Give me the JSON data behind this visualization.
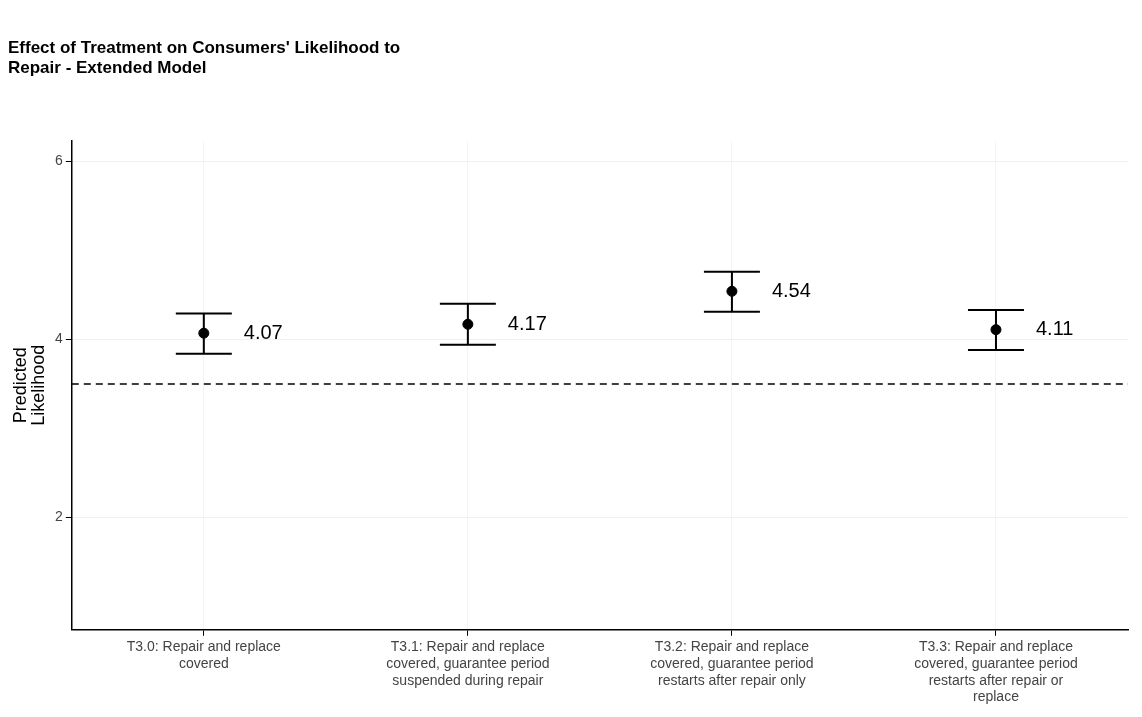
{
  "chart_data": {
    "type": "scatter",
    "title": "Effect of Treatment on Consumers' Likelihood to Repair - Extended Model",
    "ylabel": "Predicted Likelihood",
    "categories": [
      "T3.0: Repair and replace covered",
      "T3.1: Repair and replace covered, guarantee period suspended during repair",
      "T3.2: Repair and replace covered, guarantee period restarts after repair only",
      "T3.3: Repair and replace covered, guarantee period restarts after repair or replace"
    ],
    "series": [
      {
        "color": "#000000",
        "values": [
          4.07,
          4.17,
          4.54,
          4.11
        ],
        "errors": [
          [
            3.84,
            4.29
          ],
          [
            3.94,
            4.4
          ],
          [
            4.31,
            4.76
          ],
          [
            3.88,
            4.33
          ]
        ]
      }
    ],
    "data_labels": true,
    "marker": "circle",
    "ylim": [
      0.74,
      6.23
    ],
    "yticks": [
      2,
      4,
      6
    ],
    "grid": true,
    "legend": false,
    "ref_lines": [
      {
        "axis": "y",
        "value": 3.5,
        "line_style": "dashed",
        "color": "#000000"
      }
    ]
  }
}
